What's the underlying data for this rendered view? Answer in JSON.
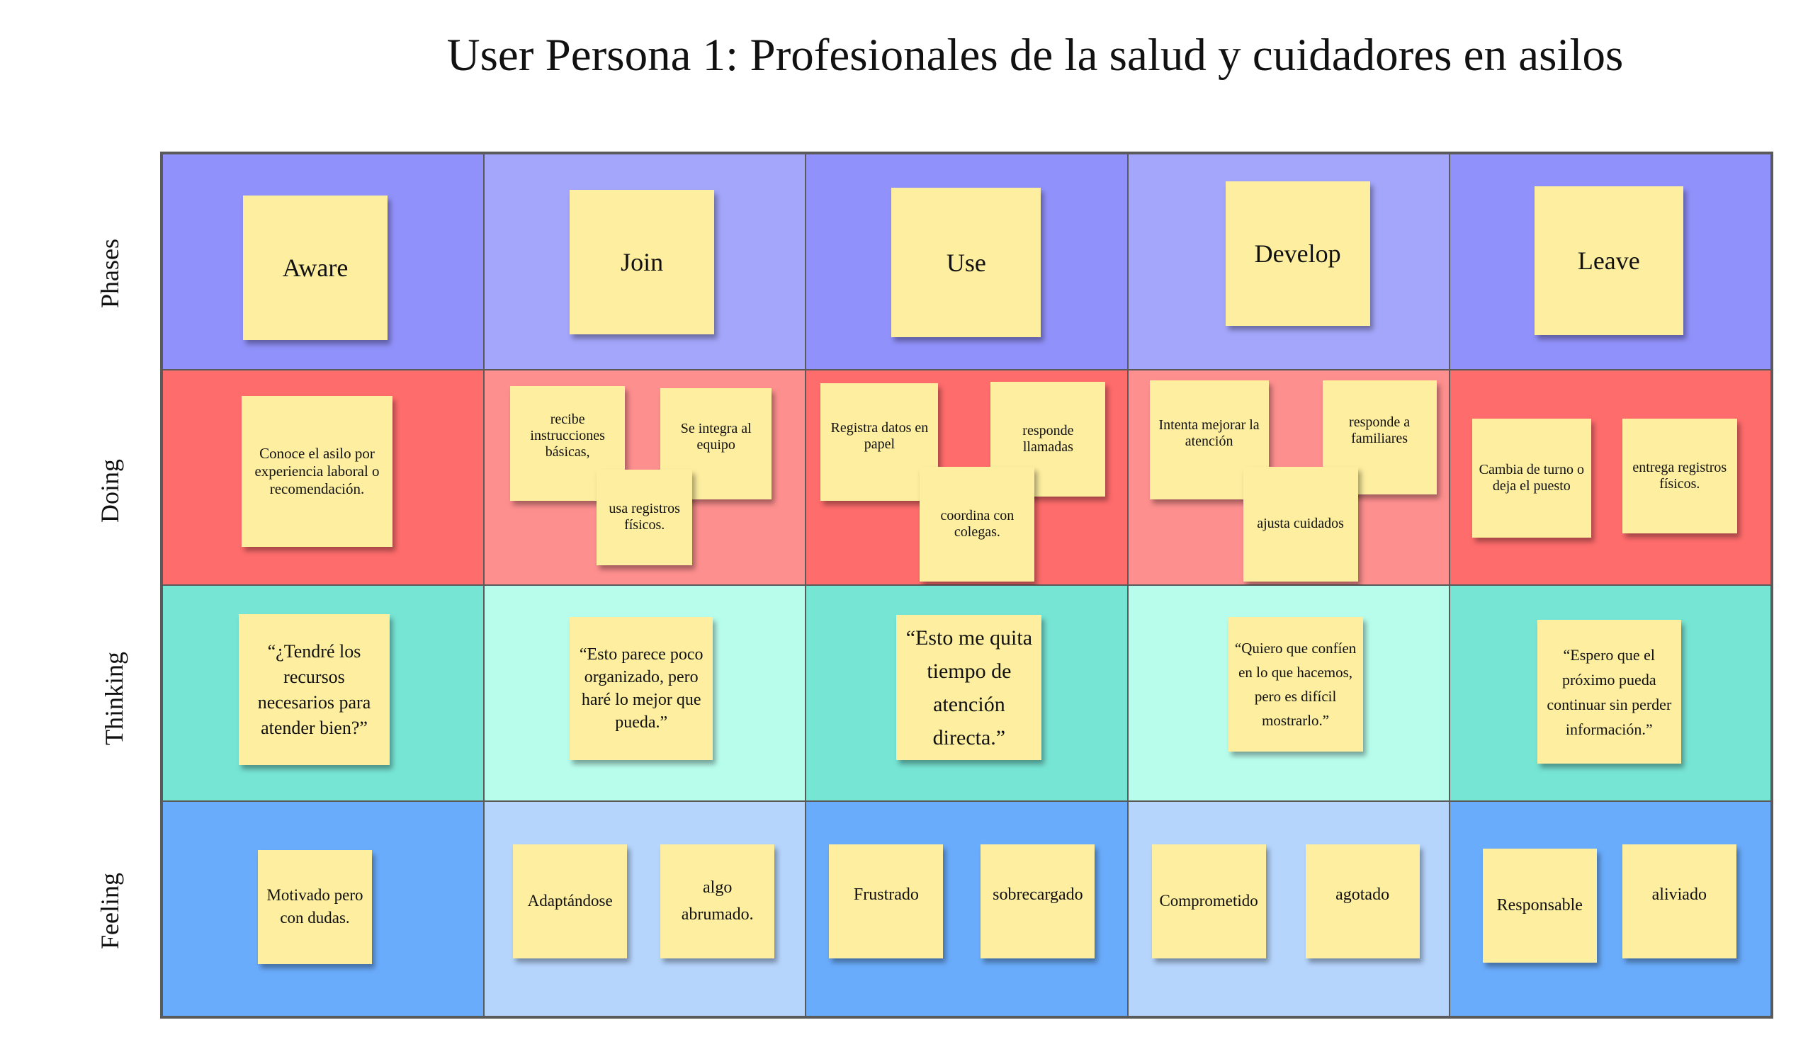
{
  "title": "User Persona 1: Profesionales de la salud y cuidadores en asilos",
  "row_labels": {
    "phases": "Phases",
    "doing": "Doing",
    "thinking": "Thinking",
    "feeling": "Feeling"
  },
  "colors": {
    "phases_dark": "#9191fb",
    "phases_light": "#a4a6fb",
    "doing_dark": "#ff6c6c",
    "doing_light": "#fe8f8f",
    "thinking_dark": "#77e5d4",
    "thinking_light": "#b8fdec",
    "feeling_dark": "#6aacfc",
    "feeling_light": "#b6d5fd",
    "note": "#fdeea0"
  },
  "phases": [
    "Aware",
    "Join",
    "Use",
    "Develop",
    "Leave"
  ],
  "doing": {
    "aware": [
      "Conoce el asilo por experiencia laboral o recomendación."
    ],
    "join": [
      "recibe instrucciones básicas,",
      "Se integra al equipo",
      "usa registros físicos."
    ],
    "use": [
      "Registra datos en papel",
      "responde llamadas",
      "coordina con colegas."
    ],
    "develop": [
      "Intenta mejorar la atención",
      "responde a familiares",
      "ajusta cuidados"
    ],
    "leave": [
      "Cambia de turno o deja el puesto",
      "entrega registros físicos."
    ]
  },
  "thinking": [
    "“¿Tendré los recursos necesarios para atender bien?”",
    "“Esto parece poco organizado, pero haré lo mejor que pueda.”",
    "“Esto me quita tiempo de atención directa.”",
    "“Quiero que confíen en lo que hacemos, pero es difícil mostrarlo.”",
    "“Espero que el próximo pueda continuar sin perder información.”"
  ],
  "feeling": {
    "aware": [
      "Motivado pero con dudas."
    ],
    "join": [
      "Adaptándose",
      "algo abrumado."
    ],
    "use": [
      "Frustrado",
      "sobrecargado"
    ],
    "develop": [
      "Comprometido",
      "agotado"
    ],
    "leave": [
      "Responsable",
      "aliviado"
    ]
  }
}
